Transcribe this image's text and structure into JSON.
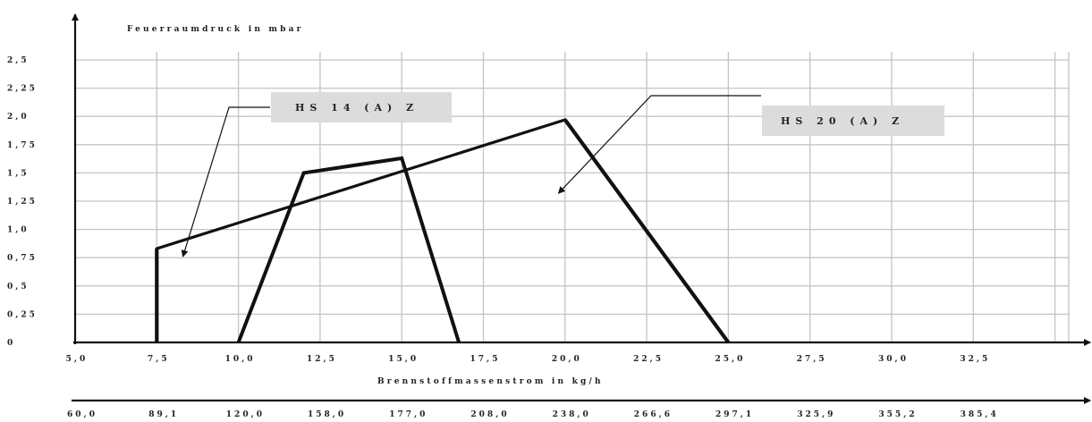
{
  "chart_data": {
    "type": "line",
    "ylabel": "Feuerraumdruck in mbar",
    "xlabel": "Brennstoffmassenstrom in kg/h",
    "x_ticks": [
      "5,0",
      "7,5",
      "10,0",
      "12,5",
      "15,0",
      "17,5",
      "20,0",
      "22,5",
      "25,0",
      "27,5",
      "30,0",
      "32,5"
    ],
    "y_ticks": [
      "0",
      "0,25",
      "0,5",
      "0,75",
      "1,0",
      "1,25",
      "1,5",
      "1,75",
      "2,0",
      "2,25",
      "2,5"
    ],
    "secondary_x_ticks": [
      "60,0",
      "89,1",
      "120,0",
      "158,0",
      "177,0",
      "208,0",
      "238,0",
      "266,6",
      "297,1",
      "325,9",
      "355,2",
      "385,4"
    ],
    "xlim": [
      5.0,
      37.5
    ],
    "ylim": [
      0,
      2.5
    ],
    "grid": true,
    "series": [
      {
        "name": "HS 14 (A) Z",
        "points": [
          [
            10.0,
            0
          ],
          [
            12.0,
            1.5
          ],
          [
            15.0,
            1.63
          ],
          [
            16.75,
            0
          ]
        ]
      },
      {
        "name": "HS 20 (A) Z",
        "points": [
          [
            7.5,
            0
          ],
          [
            7.5,
            0.83
          ],
          [
            20.0,
            1.97
          ],
          [
            25.0,
            0
          ]
        ]
      }
    ]
  },
  "annotations": [
    {
      "text": "HS 14 (A) Z",
      "target": [
        8.3,
        0.76
      ]
    },
    {
      "text": "HS 20 (A) Z",
      "target": [
        19.8,
        1.32
      ]
    }
  ]
}
